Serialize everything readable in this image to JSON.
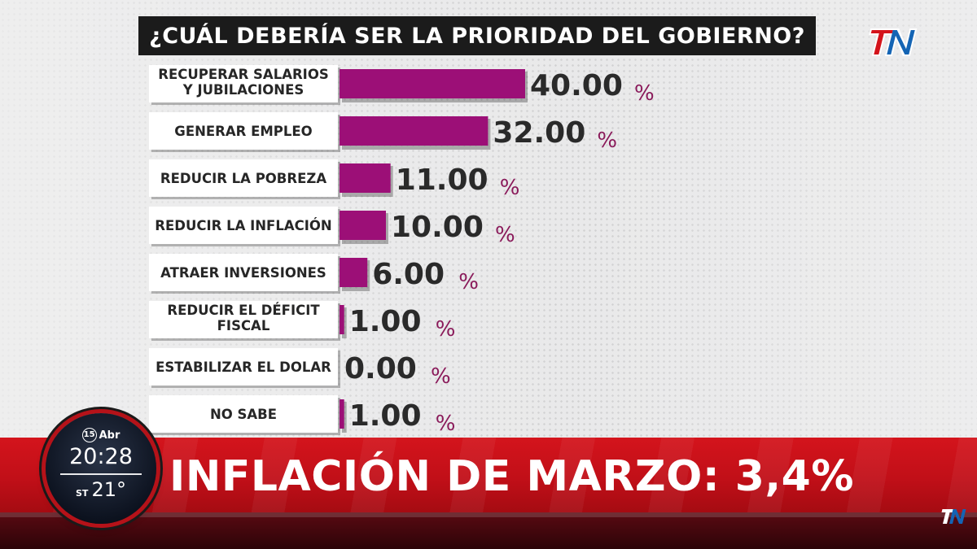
{
  "title": "¿CUÁL DEBERÍA SER LA PRIORIDAD DEL GOBIERNO?",
  "brand": {
    "logo": "TN",
    "colors": {
      "primary": "#d4141c",
      "logo_blue": "#1464b4",
      "bar": "#9c0f77"
    }
  },
  "chart_data": {
    "type": "bar",
    "orientation": "horizontal",
    "categories": [
      "RECUPERAR SALARIOS Y JUBILACIONES",
      "GENERAR EMPLEO",
      "REDUCIR LA POBREZA",
      "REDUCIR LA INFLACIÓN",
      "ATRAER INVERSIONES",
      "REDUCIR EL DÉFICIT FISCAL",
      "ESTABILIZAR EL DOLAR",
      "NO SABE"
    ],
    "label_lines": [
      [
        "RECUPERAR SALARIOS",
        "Y JUBILACIONES"
      ],
      [
        "GENERAR EMPLEO"
      ],
      [
        "REDUCIR LA POBREZA"
      ],
      [
        "REDUCIR LA INFLACIÓN"
      ],
      [
        "ATRAER INVERSIONES"
      ],
      [
        "REDUCIR EL DÉFICIT",
        "FISCAL"
      ],
      [
        "ESTABILIZAR EL DOLAR"
      ],
      [
        "NO SABE"
      ]
    ],
    "values": [
      40.0,
      32.0,
      11.0,
      10.0,
      6.0,
      1.0,
      0.0,
      1.0
    ],
    "value_labels": [
      "40.00",
      "32.00",
      "11.00",
      "10.00",
      "6.00",
      "1.00",
      "0.00",
      "1.00"
    ],
    "unit": "%",
    "xlim": [
      0,
      40
    ],
    "grid": false,
    "legend": "none"
  },
  "clock": {
    "day": "15",
    "month": "Abr",
    "time": "20:28",
    "temp_label": "ST",
    "temp": "21°"
  },
  "headline": "INFLACIÓN DE MARZO: 3,4%"
}
